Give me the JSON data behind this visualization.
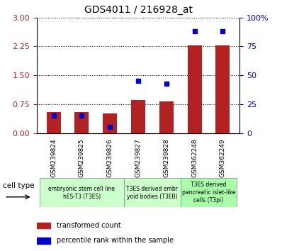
{
  "title": "GDS4011 / 216928_at",
  "samples": [
    "GSM239824",
    "GSM239825",
    "GSM239826",
    "GSM239827",
    "GSM239828",
    "GSM362248",
    "GSM362249"
  ],
  "transformed_count": [
    0.55,
    0.55,
    0.5,
    0.85,
    0.83,
    2.27,
    2.27
  ],
  "percentile_rank": [
    15,
    15,
    5,
    45,
    43,
    88,
    88
  ],
  "ylim_left": [
    0,
    3
  ],
  "ylim_right": [
    0,
    100
  ],
  "yticks_left": [
    0,
    0.75,
    1.5,
    2.25,
    3
  ],
  "yticks_right": [
    0,
    25,
    50,
    75,
    100
  ],
  "bar_color": "#B22222",
  "dot_color": "#0000CC",
  "bar_width": 0.5,
  "cell_type_groups": [
    {
      "label": "embryonic stem cell line\nhES-T3 (T3ES)",
      "start": 0,
      "end": 2,
      "color": "#ccffcc"
    },
    {
      "label": "T3ES derived embr\nyoid bodies (T3EB)",
      "start": 3,
      "end": 4,
      "color": "#ccffcc"
    },
    {
      "label": "T3ES derived\npancreatic islet-like\ncells (T3pi)",
      "start": 5,
      "end": 6,
      "color": "#aaffaa"
    }
  ],
  "cell_type_label": "cell type",
  "background_color": "#ffffff",
  "plot_bg_color": "#ffffff",
  "tick_color_left": "#B22222",
  "tick_color_right": "#0000CC"
}
